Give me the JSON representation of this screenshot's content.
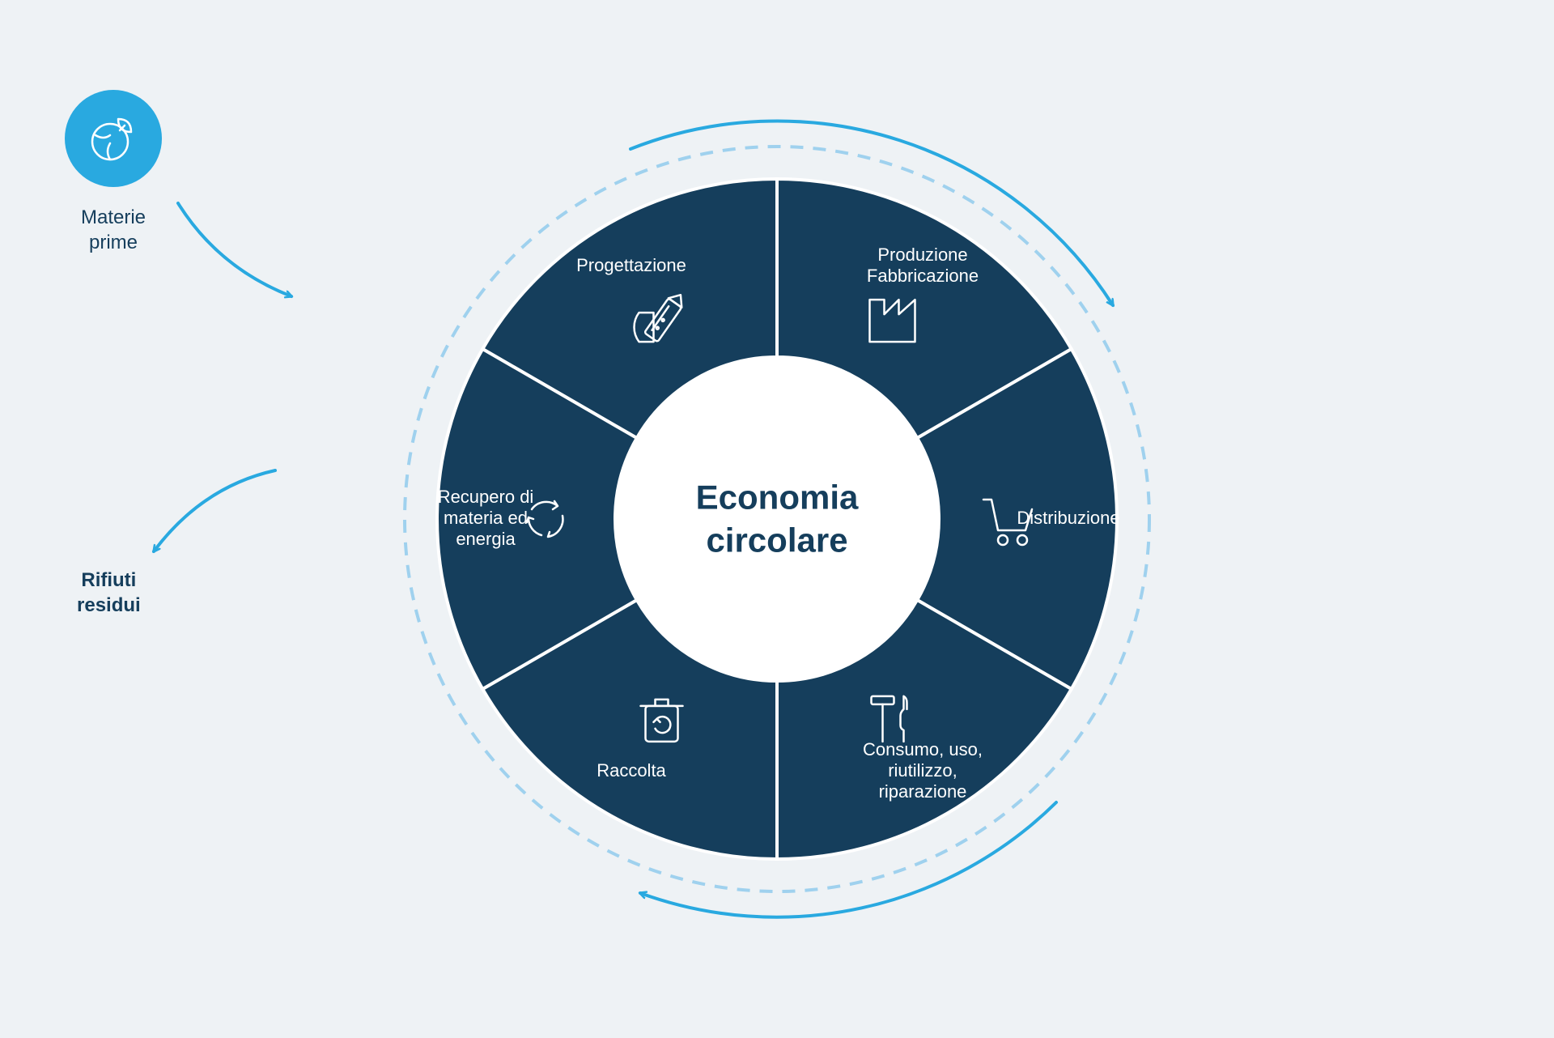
{
  "type": "circular-diagram",
  "background_color": "#eef2f5",
  "center_title_line1": "Economia",
  "center_title_line2": "circolare",
  "center_title_color": "#153e5c",
  "center_title_fontsize": 42,
  "donut": {
    "outer_radius": 420,
    "inner_radius": 200,
    "fill_color": "#153e5c",
    "divider_color": "#ffffff",
    "divider_width": 4,
    "segments": [
      {
        "key": "progettazione",
        "label_lines": [
          "Progettazione"
        ],
        "icon": "design",
        "angle_mid": -120
      },
      {
        "key": "produzione",
        "label_lines": [
          "Produzione",
          "Fabbricazione"
        ],
        "icon": "factory",
        "angle_mid": -60
      },
      {
        "key": "distribuzione",
        "label_lines": [
          "Distribuzione"
        ],
        "icon": "cart",
        "angle_mid": 0
      },
      {
        "key": "consumo",
        "label_lines": [
          "Consumo, uso,",
          "riutilizzo,",
          "riparazione"
        ],
        "icon": "tools",
        "angle_mid": 60
      },
      {
        "key": "raccolta",
        "label_lines": [
          "Raccolta"
        ],
        "icon": "bin",
        "angle_mid": 120
      },
      {
        "key": "recupero",
        "label_lines": [
          "Recupero di",
          "materia ed",
          "energia"
        ],
        "icon": "cycle",
        "angle_mid": 180
      }
    ],
    "label_fontsize": 22,
    "label_color": "#ffffff",
    "icon_stroke_color": "#ffffff",
    "icon_stroke_width": 2.5
  },
  "dashed_ring": {
    "radius": 460,
    "stroke_color": "#9fd1ee",
    "stroke_width": 4,
    "dash": "16 12"
  },
  "flow_arrows": {
    "stroke_color": "#29a9e0",
    "stroke_width": 4
  },
  "raw_materials": {
    "label_line1": "Materie",
    "label_line2": "prime",
    "badge_bg": "#29a9e0",
    "label_color": "#153e5c",
    "label_fontsize": 24
  },
  "residual_waste": {
    "label_line1": "Rifiuti",
    "label_line2": "residui",
    "label_color": "#153e5c",
    "label_fontsize": 24
  }
}
